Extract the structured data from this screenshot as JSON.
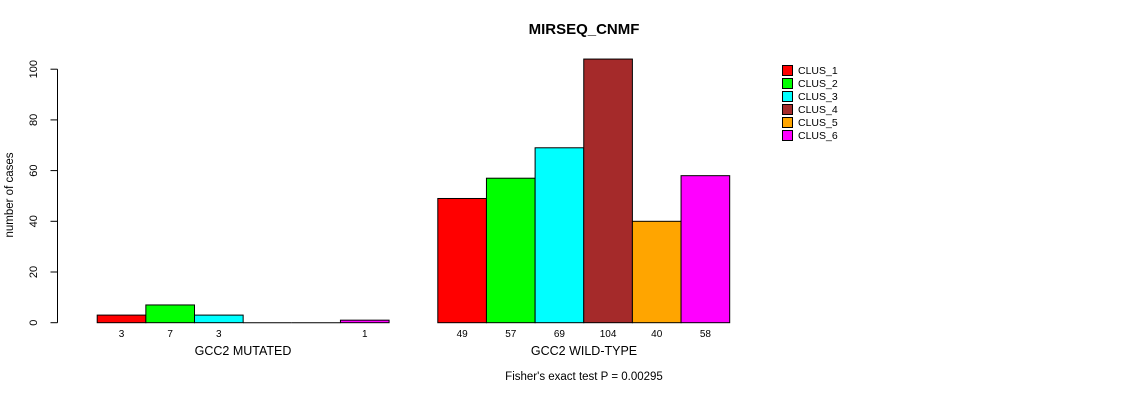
{
  "chart_data": {
    "type": "bar",
    "title": "MIRSEQ_CNMF",
    "ylabel": "number of cases",
    "footnote": "Fisher's exact test P = 0.00295",
    "yticks": [
      0,
      20,
      40,
      60,
      80,
      100
    ],
    "ylim": [
      0,
      104
    ],
    "grid": false,
    "legend_position": "right",
    "bar_value_labels_shown": "values above 0 are printed under each bar",
    "series": [
      {
        "name": "CLUS_1",
        "color": "#FF0000"
      },
      {
        "name": "CLUS_2",
        "color": "#00FF00"
      },
      {
        "name": "CLUS_3",
        "color": "#00FFFF"
      },
      {
        "name": "CLUS_4",
        "color": "#A52A2A"
      },
      {
        "name": "CLUS_5",
        "color": "#FFA500"
      },
      {
        "name": "CLUS_6",
        "color": "#FF00FF"
      }
    ],
    "groups": [
      {
        "label": "GCC2 MUTATED",
        "values": [
          3,
          7,
          3,
          0,
          0,
          1
        ]
      },
      {
        "label": "GCC2 WILD-TYPE",
        "values": [
          49,
          57,
          69,
          104,
          40,
          58
        ]
      }
    ]
  }
}
